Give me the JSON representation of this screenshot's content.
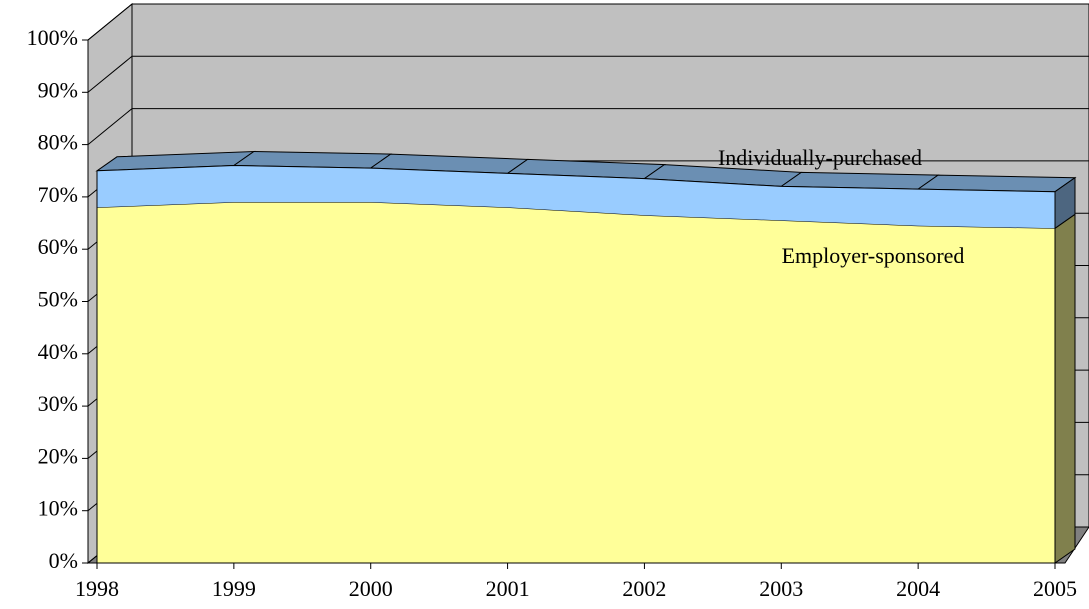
{
  "chart_data": {
    "type": "area",
    "stacked": true,
    "categories": [
      "1998",
      "1999",
      "2000",
      "2001",
      "2002",
      "2003",
      "2004",
      "2005"
    ],
    "series": [
      {
        "name": "Employer-sponsored",
        "color": "#ffff99",
        "values": [
          68,
          69,
          69,
          68,
          66.5,
          65.5,
          64.5,
          64
        ]
      },
      {
        "name": "Individually-purchased",
        "color": "#99ccff",
        "values": [
          7,
          7,
          6.5,
          6.5,
          7,
          6.5,
          7,
          7
        ]
      }
    ],
    "ylim": [
      0,
      100
    ],
    "yticks": [
      {
        "value": 0,
        "label": "0%"
      },
      {
        "value": 10,
        "label": "10%"
      },
      {
        "value": 20,
        "label": "20%"
      },
      {
        "value": 30,
        "label": "30%"
      },
      {
        "value": 40,
        "label": "40%"
      },
      {
        "value": 50,
        "label": "50%"
      },
      {
        "value": 60,
        "label": "60%"
      },
      {
        "value": 70,
        "label": "70%"
      },
      {
        "value": 80,
        "label": "80%"
      },
      {
        "value": 90,
        "label": "90%"
      },
      {
        "value": 100,
        "label": "100%"
      }
    ],
    "grid": true
  }
}
